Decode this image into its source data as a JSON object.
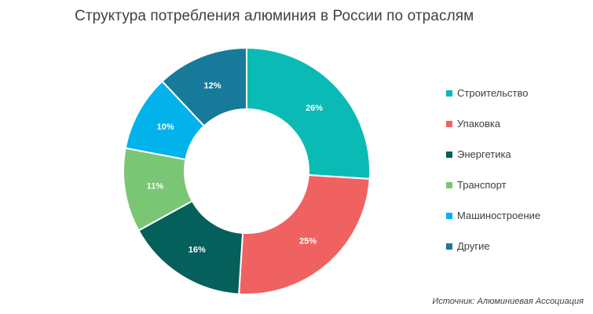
{
  "chart_data": {
    "type": "pie",
    "title": "Структура потребления алюминия в России по отраслям",
    "categories": [
      "Строительство",
      "Упаковка",
      "Энергетика",
      "Транспорт",
      "Машиностроение",
      "Другие"
    ],
    "values": [
      26,
      25,
      16,
      11,
      10,
      12
    ],
    "value_labels": [
      "26%",
      "25%",
      "16%",
      "11%",
      "10%",
      "12%"
    ],
    "colors": [
      "#0ABAB5",
      "#F06262",
      "#055F5B",
      "#7BC674",
      "#02B2EB",
      "#177A9A"
    ],
    "donut": true,
    "legend_position": "right",
    "source": "Источник: Алюминиевая Ассоциация"
  }
}
